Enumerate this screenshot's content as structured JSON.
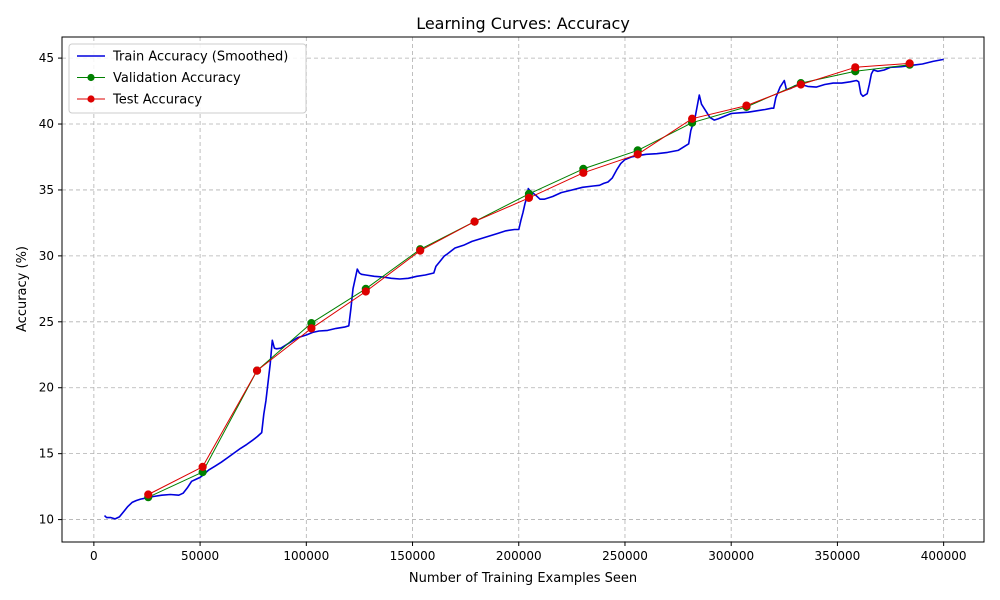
{
  "chart_data": {
    "type": "line",
    "title": "Learning Curves: Accuracy",
    "xlabel": "Number of Training Examples Seen",
    "ylabel": "Accuracy (%)",
    "xlim": [
      -15000,
      419000
    ],
    "ylim": [
      8.3,
      46.6
    ],
    "xticks": [
      0,
      50000,
      100000,
      150000,
      200000,
      250000,
      300000,
      350000,
      400000
    ],
    "yticks": [
      10,
      15,
      20,
      25,
      30,
      35,
      40,
      45
    ],
    "grid": true,
    "legend_position": "top-left",
    "series": [
      {
        "name": "Train Accuracy (Smoothed)",
        "color": "#0000dd",
        "style": "line",
        "x": [
          5000,
          6000,
          8000,
          10000,
          12000,
          14000,
          16000,
          18000,
          20000,
          22000,
          25000,
          28000,
          32000,
          36000,
          40000,
          42000,
          44000,
          46000,
          48000,
          50000,
          52000,
          54000,
          57000,
          60000,
          63000,
          66000,
          69000,
          72000,
          75000,
          77000,
          79000,
          80000,
          81000,
          83000,
          84000,
          85000,
          86000,
          88000,
          90000,
          93000,
          96000,
          100000,
          103000,
          106000,
          110000,
          114000,
          118000,
          120000,
          121000,
          122000,
          124000,
          125000,
          126000,
          128000,
          132000,
          136000,
          140000,
          144000,
          148000,
          152000,
          156000,
          160000,
          161000,
          163000,
          165000,
          166000,
          168000,
          170000,
          174000,
          178000,
          182000,
          186000,
          190000,
          194000,
          198000,
          200000,
          201000,
          202000,
          203000,
          204000,
          204500,
          205000,
          206000,
          208000,
          210000,
          212000,
          216000,
          220000,
          225000,
          230000,
          235000,
          238000,
          240000,
          242000,
          244000,
          246000,
          248000,
          250000,
          253000,
          256000,
          260000,
          265000,
          270000,
          275000,
          278000,
          280000,
          281000,
          283000,
          285000,
          286000,
          288000,
          290000,
          292000,
          294000,
          297000,
          300000,
          304000,
          308000,
          312000,
          316000,
          319000,
          320000,
          321000,
          323000,
          325000,
          326000,
          328000,
          330000,
          333000,
          336000,
          340000,
          344000,
          348000,
          352000,
          356000,
          359000,
          360000,
          361000,
          362000,
          364000,
          365000,
          366000,
          367000,
          369000,
          372000,
          375000,
          380000,
          385000,
          390000,
          395000,
          400000
        ],
        "values": [
          10.3,
          10.15,
          10.15,
          10.05,
          10.2,
          10.6,
          11.0,
          11.3,
          11.45,
          11.55,
          11.65,
          11.75,
          11.85,
          11.9,
          11.85,
          12.0,
          12.4,
          12.9,
          13.05,
          13.2,
          13.45,
          13.75,
          14.05,
          14.35,
          14.7,
          15.05,
          15.4,
          15.7,
          16.05,
          16.3,
          16.6,
          18.0,
          19.0,
          21.8,
          23.6,
          23.0,
          22.95,
          23.0,
          23.2,
          23.5,
          23.8,
          24.0,
          24.2,
          24.3,
          24.35,
          24.5,
          24.6,
          24.7,
          26.0,
          27.5,
          29.0,
          28.7,
          28.6,
          28.55,
          28.45,
          28.4,
          28.3,
          28.25,
          28.3,
          28.45,
          28.55,
          28.7,
          29.2,
          29.6,
          30.0,
          30.1,
          30.35,
          30.6,
          30.8,
          31.1,
          31.3,
          31.5,
          31.7,
          31.9,
          32.0,
          32.0,
          32.7,
          33.3,
          34.0,
          34.5,
          35.1,
          35.0,
          34.85,
          34.6,
          34.3,
          34.3,
          34.5,
          34.8,
          35.0,
          35.2,
          35.3,
          35.35,
          35.5,
          35.6,
          35.9,
          36.5,
          37.0,
          37.3,
          37.5,
          37.6,
          37.7,
          37.75,
          37.85,
          38.0,
          38.3,
          38.5,
          39.5,
          40.5,
          42.2,
          41.5,
          41.0,
          40.5,
          40.3,
          40.4,
          40.6,
          40.8,
          40.85,
          40.9,
          41.0,
          41.1,
          41.2,
          41.2,
          42.0,
          42.8,
          43.3,
          42.6,
          42.7,
          42.9,
          43.0,
          42.85,
          42.8,
          43.0,
          43.1,
          43.1,
          43.2,
          43.3,
          43.2,
          42.3,
          42.1,
          42.3,
          43.0,
          43.8,
          44.1,
          44.0,
          44.1,
          44.3,
          44.35,
          44.45,
          44.55,
          44.75,
          44.9
        ]
      },
      {
        "name": "Validation Accuracy",
        "color": "#008000",
        "style": "line-marker",
        "x": [
          25600,
          51200,
          76800,
          102400,
          128000,
          153600,
          179200,
          204800,
          230400,
          256000,
          281600,
          307200,
          332800,
          358400,
          384000
        ],
        "values": [
          11.7,
          13.6,
          21.3,
          24.9,
          27.5,
          30.5,
          32.6,
          34.7,
          36.6,
          38.0,
          40.1,
          41.3,
          43.1,
          44.0,
          44.5
        ]
      },
      {
        "name": "Test Accuracy",
        "color": "#dd0000",
        "style": "line-marker",
        "x": [
          25600,
          51200,
          76800,
          102400,
          128000,
          153600,
          179200,
          204800,
          230400,
          256000,
          281600,
          307200,
          332800,
          358400,
          384000
        ],
        "values": [
          11.9,
          14.0,
          21.3,
          24.5,
          27.3,
          30.4,
          32.6,
          34.4,
          36.3,
          37.7,
          40.4,
          41.4,
          43.0,
          44.3,
          44.6
        ]
      }
    ]
  }
}
